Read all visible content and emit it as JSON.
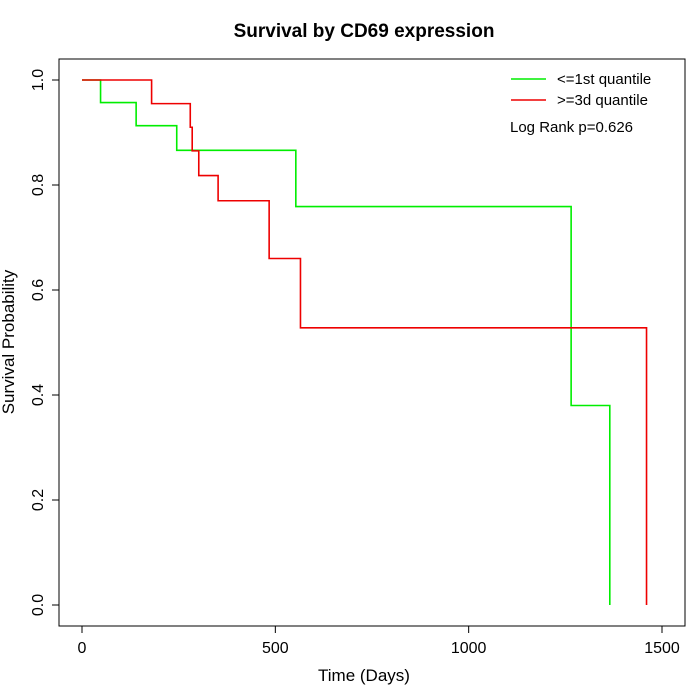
{
  "chart_data": {
    "type": "line",
    "title": "Survival by CD69 expression",
    "xlabel": "Time (Days)",
    "ylabel": "Survival Probability",
    "xlim": [
      0,
      1500
    ],
    "ylim": [
      0,
      1
    ],
    "x_ticks": [
      0,
      500,
      1000,
      1500
    ],
    "y_ticks": [
      0.0,
      0.2,
      0.4,
      0.6,
      0.8,
      1.0
    ],
    "x_tick_labels": [
      "0",
      "500",
      "1000",
      "1500"
    ],
    "y_tick_labels": [
      "0.0",
      "0.2",
      "0.4",
      "0.6",
      "0.8",
      "1.0"
    ],
    "grid": false,
    "legend_position": "top-right",
    "annotation": "Log Rank p=0.626",
    "series": [
      {
        "name": "<=1st quantile",
        "color": "#00ee00",
        "step": true,
        "x": [
          0,
          48,
          140,
          245,
          553,
          1265,
          1365
        ],
        "y": [
          1.0,
          0.957,
          0.913,
          0.866,
          0.759,
          0.38,
          0.0
        ]
      },
      {
        "name": ">=3d quantile",
        "color": "#ee0000",
        "step": true,
        "x": [
          0,
          180,
          280,
          285,
          302,
          352,
          484,
          565,
          1460
        ],
        "y": [
          1.0,
          0.955,
          0.91,
          0.865,
          0.818,
          0.77,
          0.66,
          0.528,
          0.0
        ]
      }
    ]
  }
}
